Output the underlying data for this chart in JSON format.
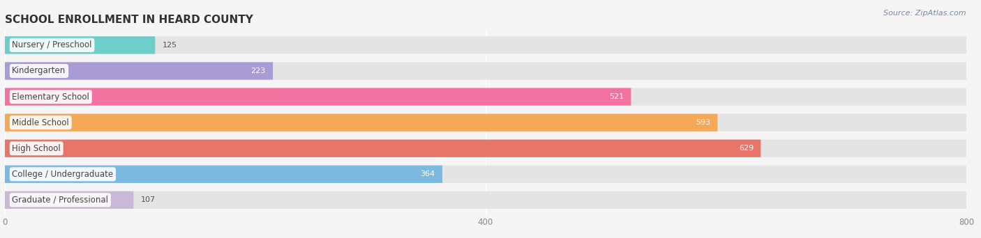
{
  "title": "SCHOOL ENROLLMENT IN HEARD COUNTY",
  "source": "Source: ZipAtlas.com",
  "categories": [
    "Nursery / Preschool",
    "Kindergarten",
    "Elementary School",
    "Middle School",
    "High School",
    "College / Undergraduate",
    "Graduate / Professional"
  ],
  "values": [
    125,
    223,
    521,
    593,
    629,
    364,
    107
  ],
  "colors": [
    "#6dcdc8",
    "#a89cd4",
    "#f472a0",
    "#f5a857",
    "#e8756a",
    "#7db8e0",
    "#c9b8d8"
  ],
  "xlim": [
    0,
    800
  ],
  "xticks": [
    0,
    400,
    800
  ],
  "background_color": "#f5f5f5",
  "bar_background": "#e4e4e4",
  "title_fontsize": 11,
  "label_fontsize": 8.5,
  "value_fontsize": 8,
  "source_fontsize": 8,
  "bar_height": 0.68
}
